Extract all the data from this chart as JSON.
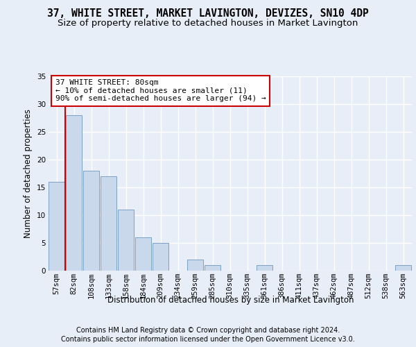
{
  "title": "37, WHITE STREET, MARKET LAVINGTON, DEVIZES, SN10 4DP",
  "subtitle": "Size of property relative to detached houses in Market Lavington",
  "xlabel": "Distribution of detached houses by size in Market Lavington",
  "ylabel": "Number of detached properties",
  "categories": [
    "57sqm",
    "82sqm",
    "108sqm",
    "133sqm",
    "158sqm",
    "184sqm",
    "209sqm",
    "234sqm",
    "259sqm",
    "285sqm",
    "310sqm",
    "335sqm",
    "361sqm",
    "386sqm",
    "411sqm",
    "437sqm",
    "462sqm",
    "487sqm",
    "512sqm",
    "538sqm",
    "563sqm"
  ],
  "values": [
    16,
    28,
    18,
    17,
    11,
    6,
    5,
    0,
    2,
    1,
    0,
    0,
    1,
    0,
    0,
    0,
    0,
    0,
    0,
    0,
    1
  ],
  "bar_color": "#c9d9eb",
  "bar_edge_color": "#7aa0c4",
  "ylim": [
    0,
    35
  ],
  "yticks": [
    0,
    5,
    10,
    15,
    20,
    25,
    30,
    35
  ],
  "annotation_text": "37 WHITE STREET: 80sqm\n← 10% of detached houses are smaller (11)\n90% of semi-detached houses are larger (94) →",
  "annotation_box_color": "#ffffff",
  "annotation_box_edge": "#cc0000",
  "footer_line1": "Contains HM Land Registry data © Crown copyright and database right 2024.",
  "footer_line2": "Contains public sector information licensed under the Open Government Licence v3.0.",
  "bg_color": "#e8eef8",
  "plot_bg_color": "#e8eef8",
  "grid_color": "#ffffff",
  "title_fontsize": 10.5,
  "subtitle_fontsize": 9.5,
  "axis_label_fontsize": 8.5,
  "tick_fontsize": 7.5,
  "footer_fontsize": 7
}
